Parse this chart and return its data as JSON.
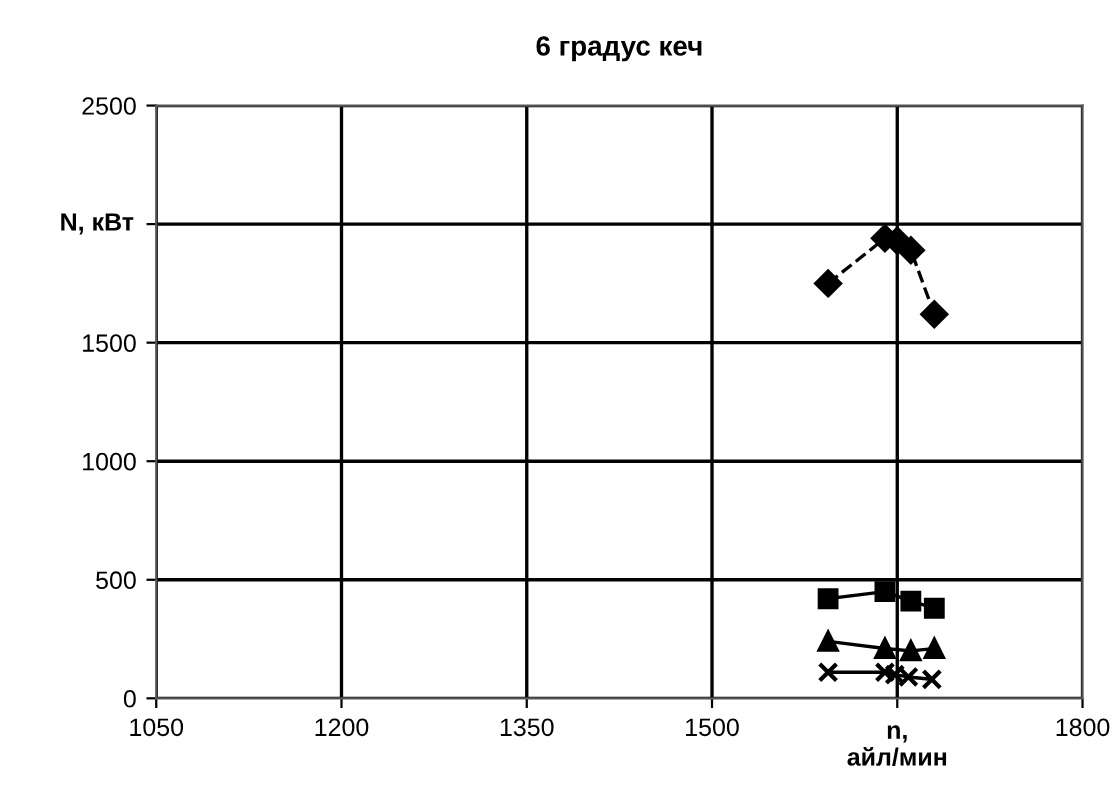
{
  "chart_data": {
    "type": "line",
    "title": "6 градус кеч",
    "xlabel": "n,\nайл/мин",
    "ylabel": "N, кВт",
    "xlim": [
      1050,
      1800
    ],
    "xticks": [
      1050,
      1200,
      1350,
      1500,
      {
        "value": 1650,
        "label": null
      },
      1800
    ],
    "ylim": [
      0,
      2500
    ],
    "yticks": [
      0,
      500,
      1000,
      1500,
      {
        "value": 2000,
        "label": null
      },
      2500
    ],
    "grid": true,
    "legend": false,
    "series": [
      {
        "color": "#000000",
        "marker": "diamond",
        "line_style": "dashed",
        "x": [
          1594,
          1640,
          1650,
          1661,
          1680
        ],
        "values": [
          1750,
          1940,
          1930,
          1890,
          1620
        ]
      },
      {
        "color": "#000000",
        "marker": "square",
        "line_style": "solid",
        "x": [
          1594,
          1640,
          1661,
          1680
        ],
        "values": [
          420,
          450,
          410,
          380
        ]
      },
      {
        "color": "#000000",
        "marker": "triangle",
        "line_style": "solid",
        "x": [
          1594,
          1640,
          1661,
          1680
        ],
        "values": [
          240,
          210,
          200,
          210
        ]
      },
      {
        "color": "#000000",
        "marker": "cross",
        "line_style": "solid",
        "x": [
          1594,
          1640,
          1648,
          1659,
          1678
        ],
        "values": [
          110,
          110,
          100,
          90,
          80
        ]
      }
    ]
  }
}
